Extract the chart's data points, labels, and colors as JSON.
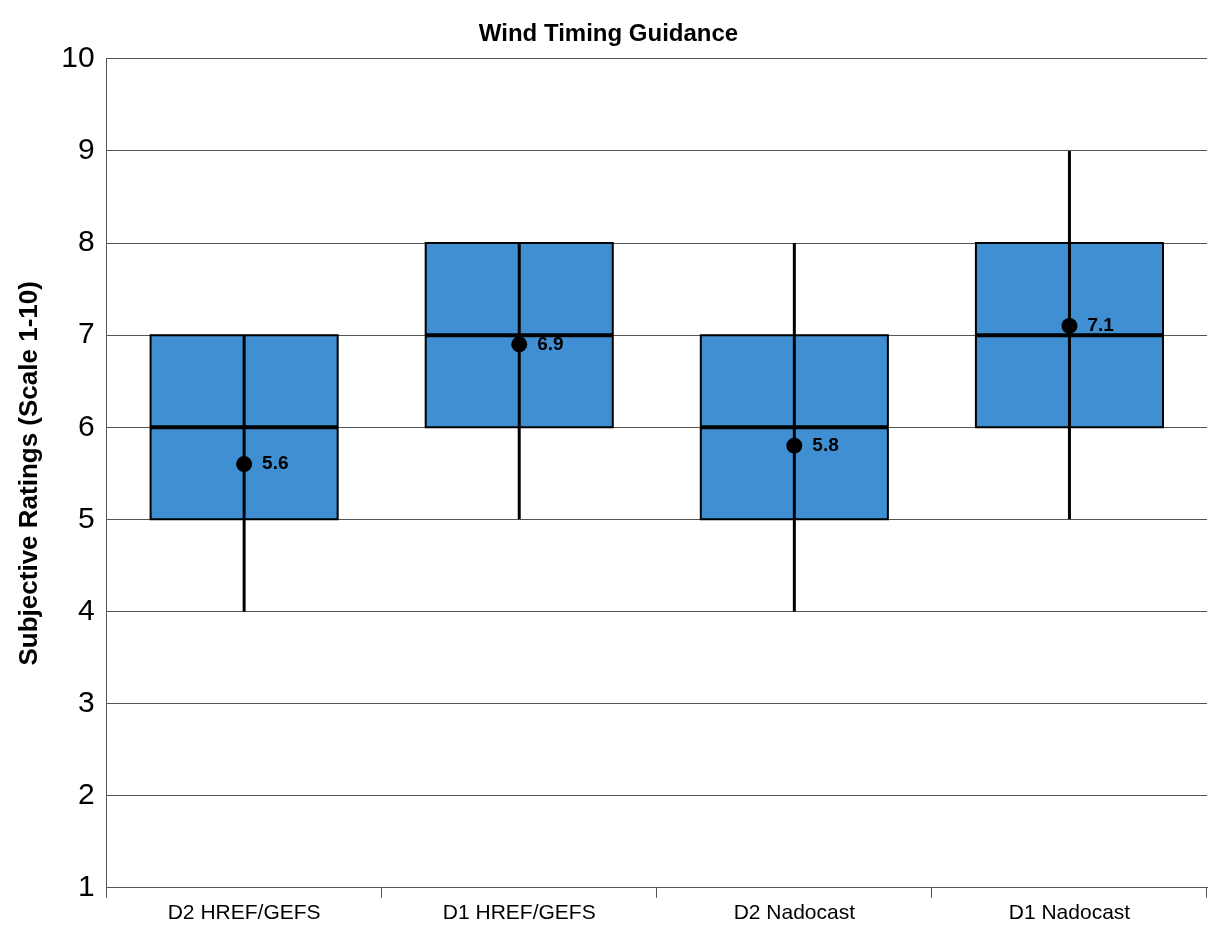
{
  "chart_data": {
    "type": "box",
    "title": "Wind Timing Guidance",
    "ylabel": "Subjective Ratings (Scale 1-10)",
    "categories": [
      "D2 HREF/GEFS",
      "D1 HREF/GEFS",
      "D2 Nadocast",
      "D1 Nadocast"
    ],
    "color": "#3f8fd2",
    "boxes": [
      {
        "low": 4,
        "q1": 5,
        "median": 6,
        "q3": 7,
        "high": 7,
        "mean": 5.6
      },
      {
        "low": 5,
        "q1": 6,
        "median": 7,
        "q3": 8,
        "high": 8,
        "mean": 6.9
      },
      {
        "low": 4,
        "q1": 5,
        "median": 6,
        "q3": 7,
        "high": 8,
        "mean": 5.8
      },
      {
        "low": 5,
        "q1": 6,
        "median": 7,
        "q3": 8,
        "high": 9,
        "mean": 7.1
      }
    ],
    "annotations": [
      {
        "text": "5.6",
        "x": "D2 HREF/GEFS",
        "y": 5.6
      },
      {
        "text": "6.9",
        "x": "D1 HREF/GEFS",
        "y": 6.9
      },
      {
        "text": "5.8",
        "x": "D2 Nadocast",
        "y": 5.8
      },
      {
        "text": "7.1",
        "x": "D1 Nadocast",
        "y": 7.1
      }
    ],
    "ylim": [
      1,
      10
    ],
    "yticks": [
      1,
      2,
      3,
      4,
      5,
      6,
      7,
      8,
      9,
      10
    ],
    "grid": "y",
    "legend": false,
    "marker": "circle"
  }
}
